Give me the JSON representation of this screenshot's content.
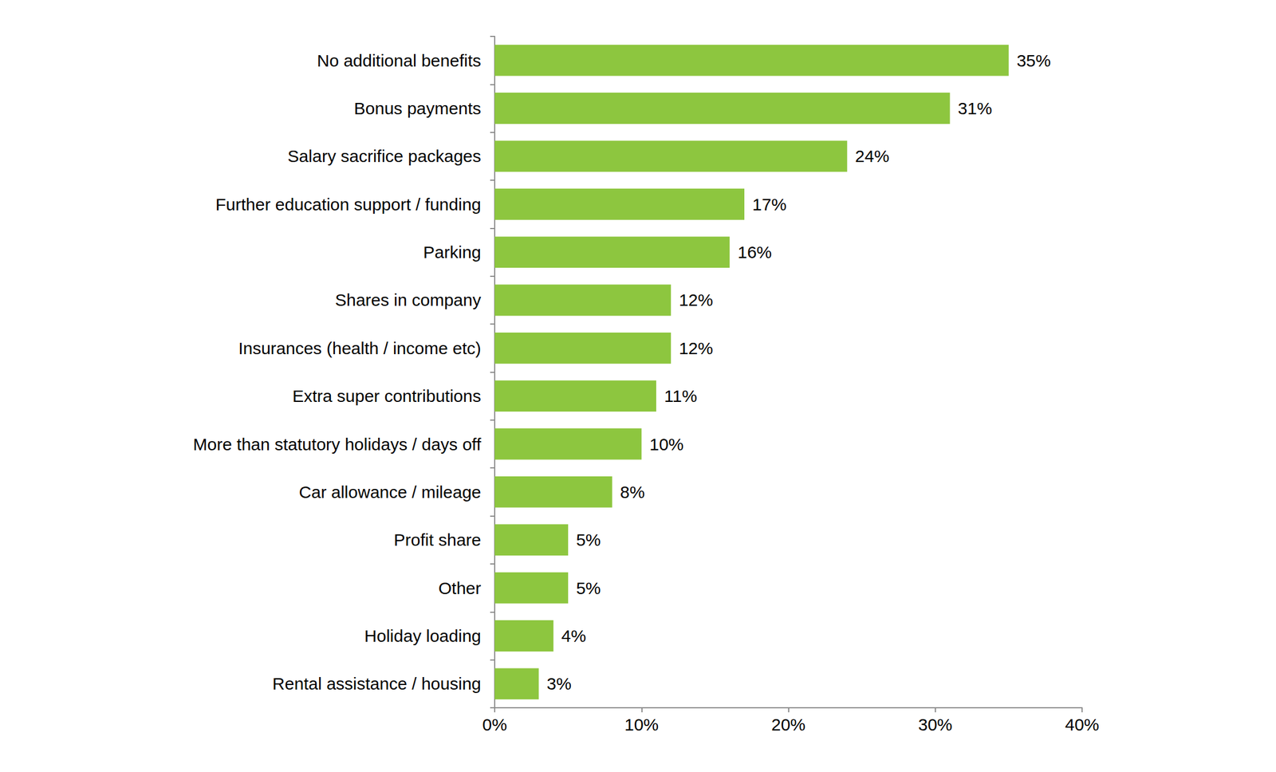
{
  "chart_data": {
    "type": "bar",
    "orientation": "horizontal",
    "categories": [
      "No additional benefits",
      "Bonus payments",
      "Salary sacrifice packages",
      "Further education support / funding",
      "Parking",
      "Shares in company",
      "Insurances (health / income etc)",
      "Extra super contributions",
      "More than statutory holidays / days off",
      "Car allowance / mileage",
      "Profit share",
      "Other",
      "Holiday loading",
      "Rental assistance / housing"
    ],
    "values": [
      35,
      31,
      24,
      17,
      16,
      12,
      12,
      11,
      10,
      8,
      5,
      5,
      4,
      3
    ],
    "value_labels": [
      "35%",
      "31%",
      "24%",
      "17%",
      "16%",
      "12%",
      "12%",
      "11%",
      "10%",
      "8%",
      "5%",
      "5%",
      "4%",
      "3%"
    ],
    "color": "#8dc63f",
    "xlim": [
      0,
      40
    ],
    "xticks": [
      {
        "value": 0,
        "label": "0%"
      },
      {
        "value": 10,
        "label": "10%"
      },
      {
        "value": 20,
        "label": "20%"
      },
      {
        "value": 30,
        "label": "30%"
      },
      {
        "value": 40,
        "label": "40%"
      }
    ],
    "grid": false,
    "data_labels": true
  }
}
